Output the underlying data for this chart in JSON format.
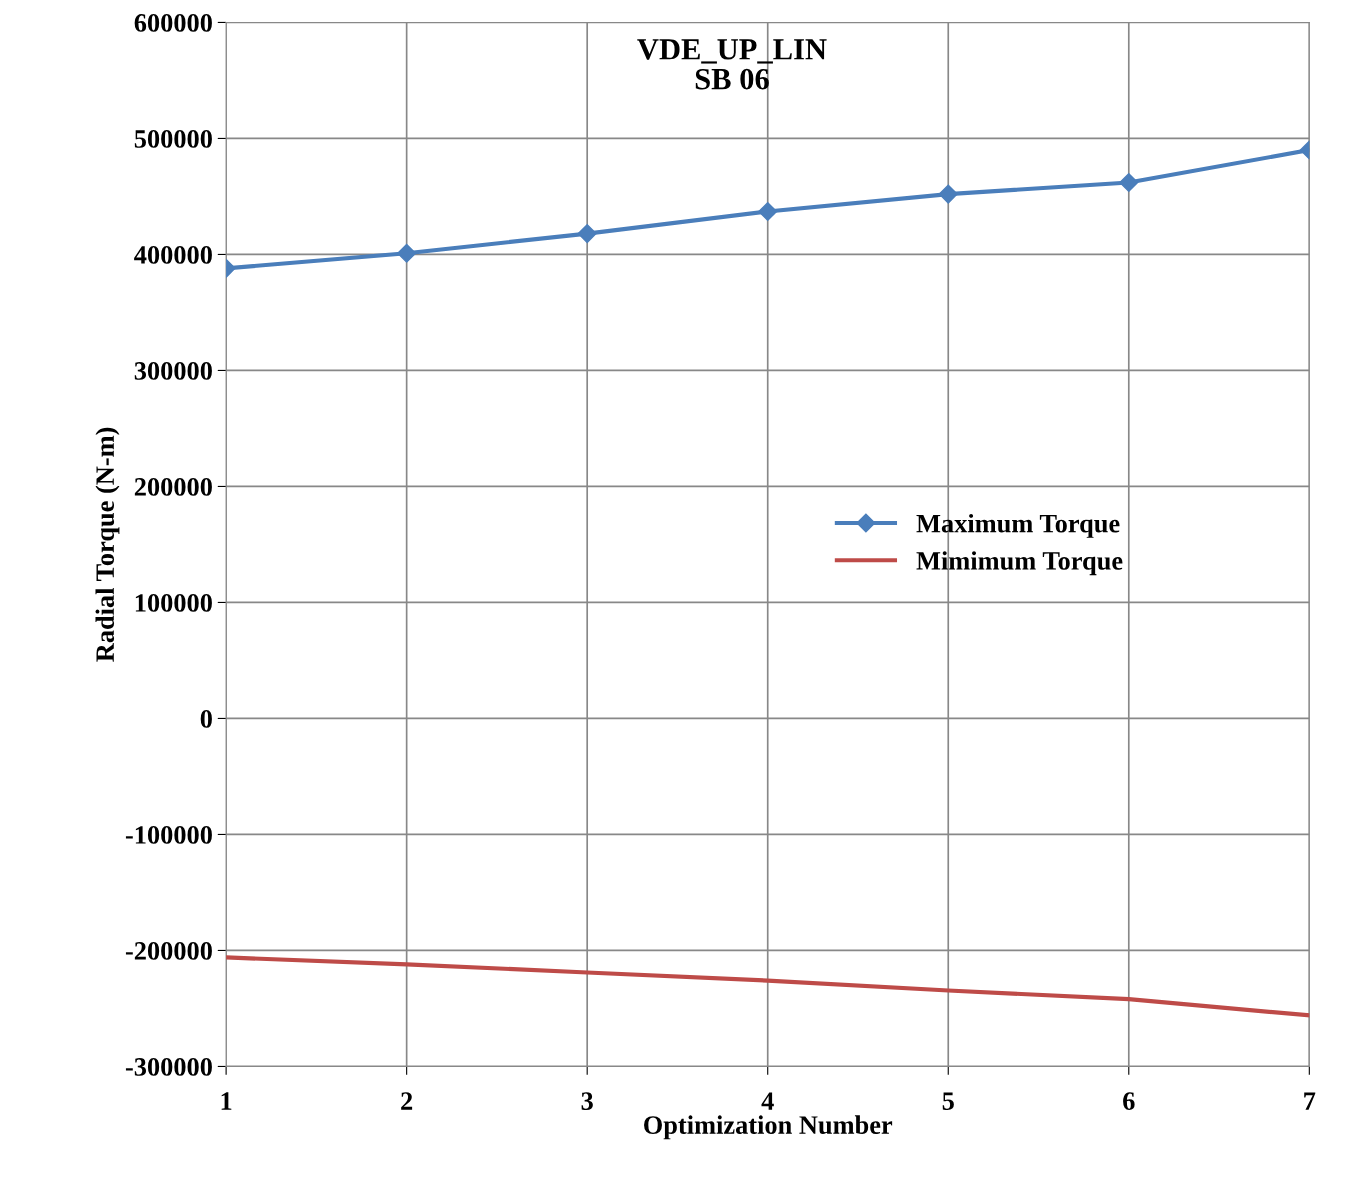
{
  "chart_data": {
    "type": "line",
    "title": "VDE_UP_LIN\nSB 06",
    "xlabel": "Optimization Number",
    "ylabel": "Radial Torque (N-m)",
    "x": [
      1,
      2,
      3,
      4,
      5,
      6,
      7
    ],
    "series": [
      {
        "name": "Maximum Torque",
        "color": "#4a7ebb",
        "marker": "diamond",
        "values": [
          388000,
          401000,
          418000,
          437000,
          452000,
          462000,
          490000
        ]
      },
      {
        "name": "Mimimum Torque",
        "color": "#be4b48",
        "marker": "none",
        "values": [
          -206000,
          -212000,
          -219000,
          -226000,
          -234500,
          -242000,
          -256000
        ]
      }
    ],
    "xlim": [
      1,
      7
    ],
    "xticks": [
      1,
      2,
      3,
      4,
      5,
      6,
      7
    ],
    "ylim": [
      -300000,
      600000
    ],
    "yticks": [
      -300000,
      -200000,
      -100000,
      0,
      100000,
      200000,
      300000,
      400000,
      500000,
      600000
    ],
    "grid": true,
    "legend": "right",
    "line_style": "solid"
  }
}
